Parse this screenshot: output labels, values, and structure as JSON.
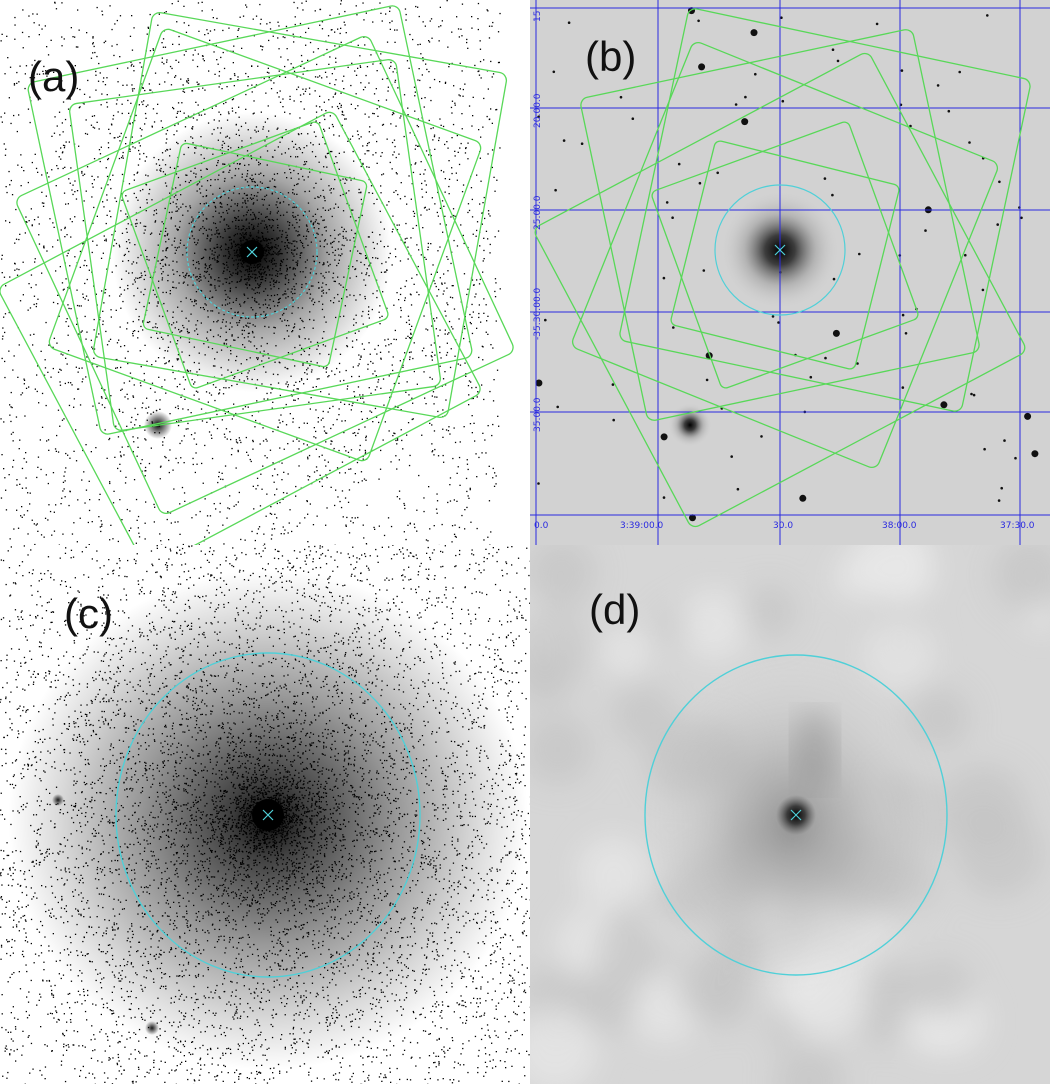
{
  "panels": {
    "a": {
      "label": "(a)"
    },
    "b": {
      "label": "(b)",
      "dec_labels": [
        "15",
        "20:00.0",
        "25:00.0",
        "-35:30:00.0",
        "35:00.0"
      ],
      "ra_labels": [
        "0.0",
        "3:39:00.0",
        "30.0",
        "38:00.0",
        "37:30.0"
      ]
    },
    "c": {
      "label": "(c)"
    },
    "d": {
      "label": "(d)"
    }
  },
  "colors": {
    "pointing_box": "#58d858",
    "aperture_circle": "#4fd0d8",
    "coordinate_grid": "#2a2ae0"
  }
}
